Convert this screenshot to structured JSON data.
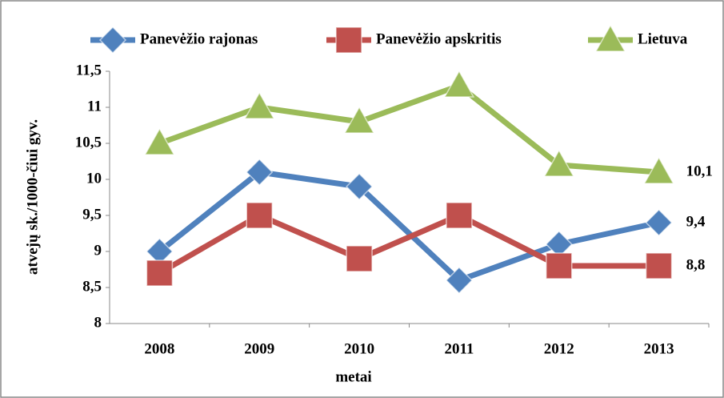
{
  "chart_data": {
    "type": "line",
    "x_label": "metai",
    "y_label": "atvejų sk./1000-čiui gyv.",
    "categories": [
      "2008",
      "2009",
      "2010",
      "2011",
      "2012",
      "2013"
    ],
    "series": [
      {
        "name": "Panevėžio rajonas",
        "color": "#4f81bd",
        "marker": "diamond",
        "values": [
          9.0,
          10.1,
          9.9,
          8.6,
          9.1,
          9.4
        ],
        "value_labels": [
          null,
          null,
          null,
          null,
          null,
          "9,4"
        ]
      },
      {
        "name": "Panevėžio apskritis",
        "color": "#c0504d",
        "marker": "square",
        "values": [
          8.7,
          9.5,
          8.9,
          9.5,
          8.8,
          8.8
        ],
        "value_labels": [
          null,
          null,
          null,
          null,
          null,
          "8,8"
        ]
      },
      {
        "name": "Lietuva",
        "color": "#9bbb59",
        "marker": "triangle",
        "values": [
          10.5,
          11.0,
          10.8,
          11.3,
          10.2,
          10.1
        ],
        "value_labels": [
          null,
          null,
          null,
          null,
          null,
          "10,1"
        ]
      }
    ],
    "ylim": [
      8,
      11.5
    ],
    "yticks": [
      8,
      {
        "value": 8.5,
        "label": "8,5"
      },
      9,
      {
        "value": 9.5,
        "label": "9,5"
      },
      10,
      {
        "value": 10.5,
        "label": "10,5"
      },
      11,
      {
        "value": 11.5,
        "label": "11,5"
      }
    ],
    "grid": false,
    "legend": "top"
  }
}
